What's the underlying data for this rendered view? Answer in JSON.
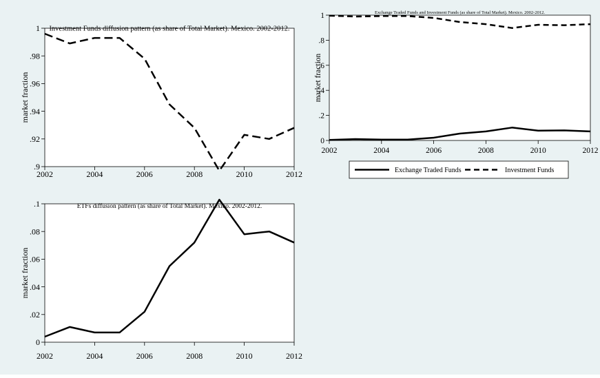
{
  "chart_data": [
    {
      "id": "if",
      "type": "line",
      "title": "Investment Funds diffusion pattern (as share of Total Market). Mexico. 2002-2012.",
      "ylabel": "market fraction",
      "xlabel": "",
      "x_ticks": [
        2002,
        2004,
        2006,
        2008,
        2010,
        2012
      ],
      "y_ticks": [
        0.9,
        0.92,
        0.94,
        0.96,
        0.98,
        1
      ],
      "y_tick_labels": [
        ".9",
        ".92",
        ".94",
        ".96",
        ".98",
        "1"
      ],
      "x_range": [
        2002,
        2012
      ],
      "y_range": [
        0.9,
        1
      ],
      "grid": false,
      "series": [
        {
          "style": "dashed",
          "color": "#000000",
          "x": [
            2002,
            2003,
            2004,
            2005,
            2006,
            2007,
            2008,
            2009,
            2010,
            2011,
            2012
          ],
          "y": [
            0.996,
            0.989,
            0.993,
            0.993,
            0.978,
            0.945,
            0.928,
            0.897,
            0.923,
            0.92,
            0.928
          ]
        }
      ]
    },
    {
      "id": "both",
      "type": "line",
      "title": "Exchange Traded Funds and Investment Funds (as share of Total Market). Mexico. 2002-2012.",
      "ylabel": "market fraction",
      "xlabel": "",
      "x_ticks": [
        2002,
        2004,
        2006,
        2008,
        2010,
        2012
      ],
      "y_ticks": [
        0,
        0.2,
        0.4,
        0.6,
        0.8,
        1
      ],
      "y_tick_labels": [
        "0",
        ".2",
        ".4",
        ".6",
        ".8",
        "1"
      ],
      "x_range": [
        2002,
        2012
      ],
      "y_range": [
        0,
        1
      ],
      "grid": false,
      "legend": "bottom",
      "series": [
        {
          "name": "Exchange Traded Funds",
          "style": "solid",
          "color": "#000000",
          "x": [
            2002,
            2003,
            2004,
            2005,
            2006,
            2007,
            2008,
            2009,
            2010,
            2011,
            2012
          ],
          "y": [
            0.004,
            0.011,
            0.007,
            0.007,
            0.022,
            0.055,
            0.072,
            0.103,
            0.078,
            0.08,
            0.072
          ]
        },
        {
          "name": "Investment Funds",
          "style": "dashed",
          "color": "#000000",
          "x": [
            2002,
            2003,
            2004,
            2005,
            2006,
            2007,
            2008,
            2009,
            2010,
            2011,
            2012
          ],
          "y": [
            0.996,
            0.989,
            0.993,
            0.993,
            0.978,
            0.945,
            0.928,
            0.897,
            0.923,
            0.92,
            0.928
          ]
        }
      ]
    },
    {
      "id": "etf",
      "type": "line",
      "title": "ETFs diffusion pattern (as share of Total Market). Mexico. 2002-2012.",
      "ylabel": "market fraction",
      "xlabel": "",
      "x_ticks": [
        2002,
        2004,
        2006,
        2008,
        2010,
        2012
      ],
      "y_ticks": [
        0,
        0.02,
        0.04,
        0.06,
        0.08,
        0.1
      ],
      "y_tick_labels": [
        "0",
        ".02",
        ".04",
        ".06",
        ".08",
        ".1"
      ],
      "x_range": [
        2002,
        2012
      ],
      "y_range": [
        0,
        0.1
      ],
      "grid": false,
      "series": [
        {
          "style": "solid",
          "color": "#000000",
          "x": [
            2002,
            2003,
            2004,
            2005,
            2006,
            2007,
            2008,
            2009,
            2010,
            2011,
            2012
          ],
          "y": [
            0.004,
            0.011,
            0.007,
            0.007,
            0.022,
            0.055,
            0.072,
            0.103,
            0.078,
            0.08,
            0.072
          ]
        }
      ]
    }
  ]
}
